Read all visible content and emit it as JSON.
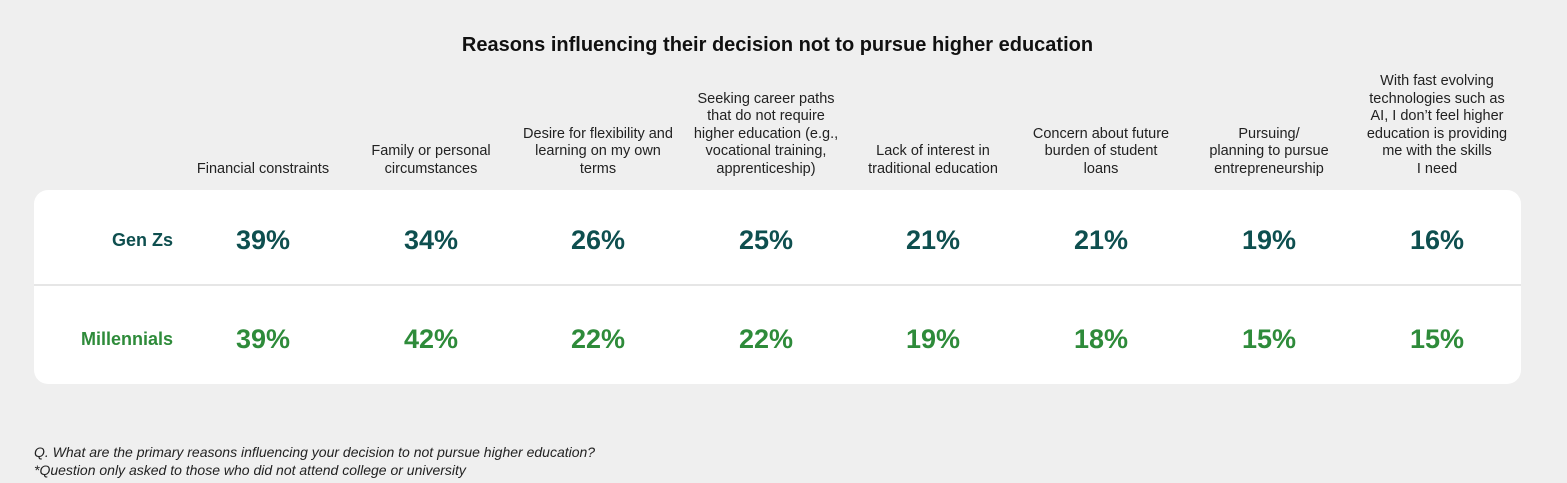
{
  "chart_data": {
    "type": "table",
    "title": "Reasons influencing their decision not to pursue higher education",
    "categories": [
      "Financial constraints",
      "Family or personal circumstances",
      "Desire for flexibility and learning on my own terms",
      "Seeking career paths that do not require higher education (e.g., vocational training, apprenticeship)",
      "Lack of interest in traditional education",
      "Concern about future burden of student loans",
      "Pursuing/ planning to pursue entrepreneurship",
      "With fast evolving technologies such as AI, I don’t feel higher education is providing me with the skills I need"
    ],
    "series": [
      {
        "name": "Gen Zs",
        "values": [
          39,
          34,
          26,
          25,
          21,
          21,
          19,
          16
        ],
        "color": "#0e4f4f"
      },
      {
        "name": "Millennials",
        "values": [
          39,
          42,
          22,
          22,
          19,
          18,
          15,
          15
        ],
        "color": "#2e8b3a"
      }
    ],
    "value_format": "percent"
  },
  "header_lines": [
    [
      "Financial constraints"
    ],
    [
      "Family or personal",
      "circumstances"
    ],
    [
      "Desire for flexibility and",
      "learning on my own",
      "terms"
    ],
    [
      "Seeking career paths",
      "that do not require",
      "higher education (e.g.,",
      "vocational training,",
      "apprenticeship)"
    ],
    [
      "Lack of interest in",
      "traditional education"
    ],
    [
      "Concern about future",
      "burden of student",
      "loans"
    ],
    [
      "Pursuing/",
      "planning to pursue",
      "entrepreneurship"
    ],
    [
      "With fast evolving",
      "technologies such as",
      "AI, I don’t feel higher",
      "education is providing",
      "me with the skills",
      "I need"
    ]
  ],
  "footnote": {
    "line1": "Q. What are the primary reasons influencing your decision to not pursue higher education?",
    "line2": "*Question only asked to those who did not attend college or university"
  }
}
